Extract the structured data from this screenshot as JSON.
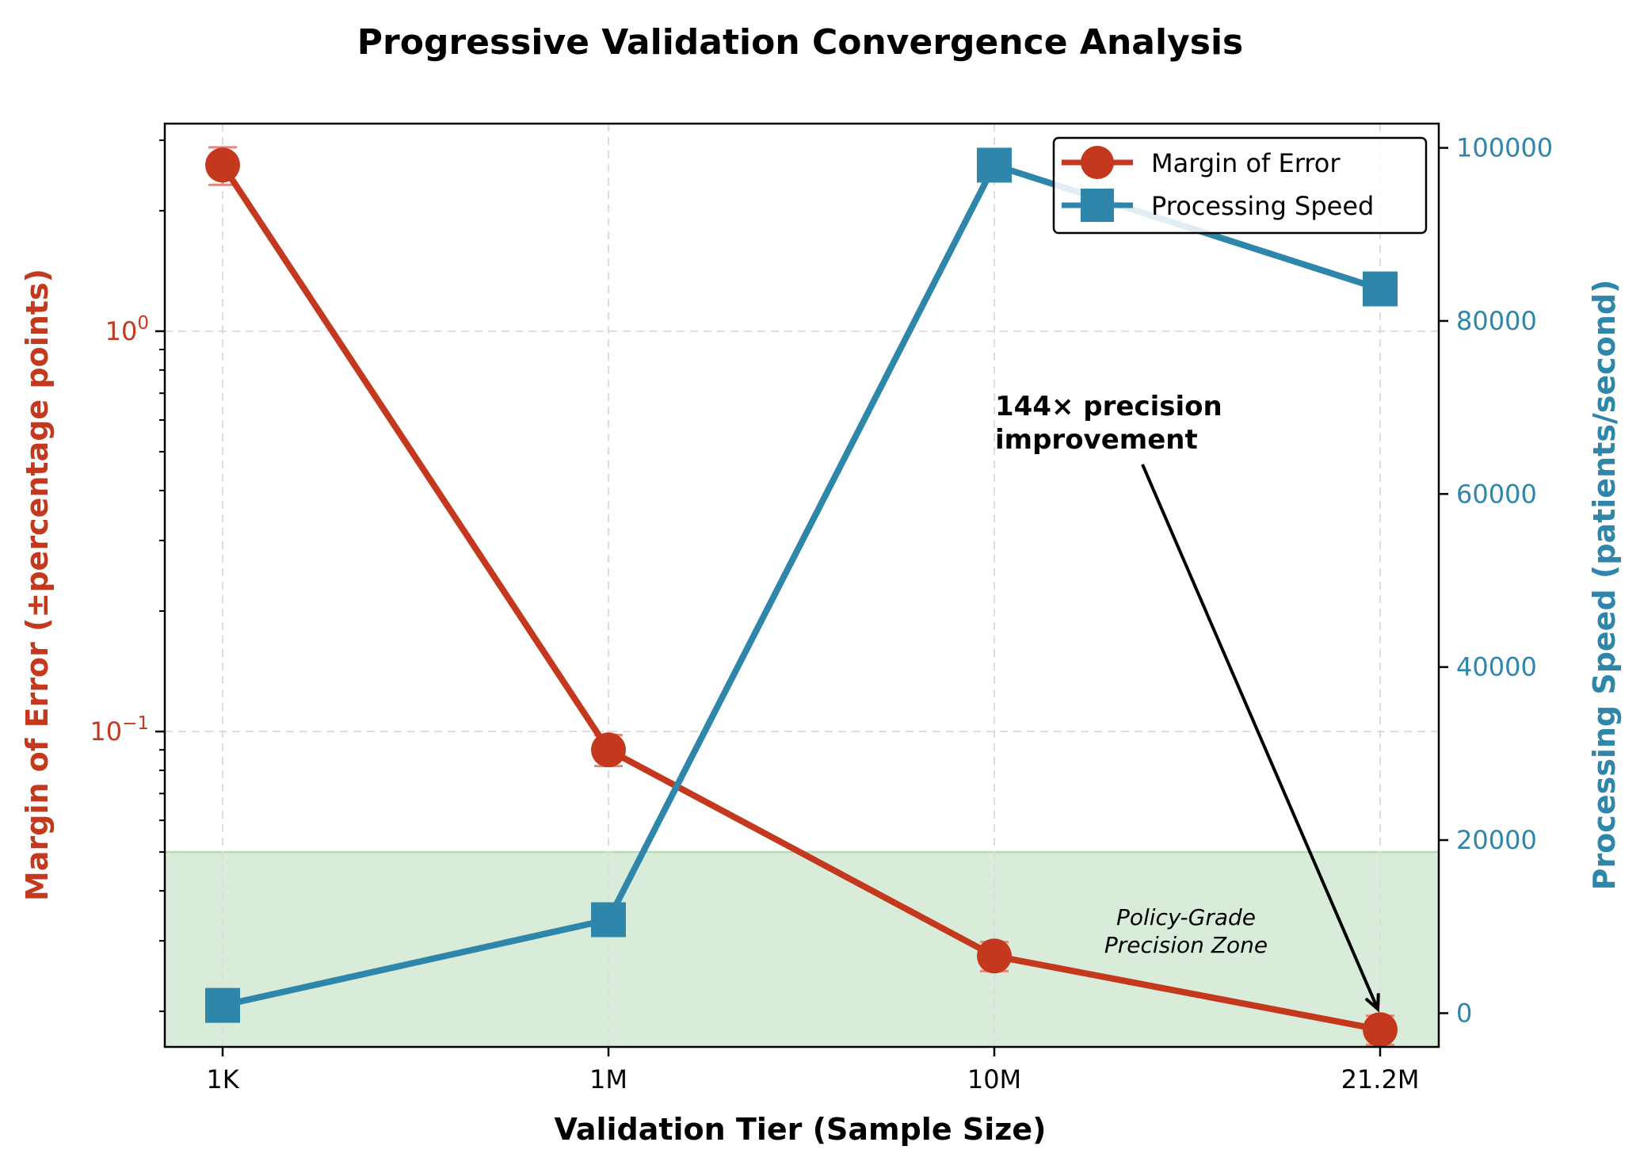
{
  "chart_data": {
    "type": "line",
    "title": "Progressive Validation Convergence Analysis",
    "xlabel": "Validation Tier (Sample Size)",
    "categories": [
      "1K",
      "1M",
      "10M",
      "21.2M"
    ],
    "left_axis": {
      "label": "Margin of Error (±percentage points)",
      "scale": "log",
      "range": [
        0.0163,
        3.3
      ],
      "ticks": [
        {
          "value": 1.0,
          "label": "10^0"
        },
        {
          "value": 0.1,
          "label": "10^-1"
        }
      ],
      "minor_ticks": [
        0.02,
        0.03,
        0.04,
        0.05,
        0.06,
        0.07,
        0.08,
        0.09,
        0.2,
        0.3,
        0.4,
        0.5,
        0.6,
        0.7,
        0.8,
        0.9,
        2,
        3
      ],
      "color": "#c4391e"
    },
    "right_axis": {
      "label": "Processing Speed (patients/second)",
      "scale": "linear",
      "range": [
        -3900,
        102800
      ],
      "ticks": [
        0,
        20000,
        40000,
        60000,
        80000,
        100000
      ],
      "color": "#2e86ab"
    },
    "series": [
      {
        "name": "Margin of Error",
        "axis": "left",
        "marker": "circle",
        "color": "#c4391e",
        "values": [
          2.6,
          0.09,
          0.0275,
          0.018
        ],
        "errors": [
          0.28,
          0.008,
          0.0023,
          0.0015
        ]
      },
      {
        "name": "Processing Speed",
        "axis": "right",
        "marker": "square",
        "color": "#2e86ab",
        "values": [
          900,
          10800,
          98000,
          83700
        ]
      }
    ],
    "shaded_zone": {
      "label": "Policy-Grade\nPrecision Zone",
      "from": 0,
      "to": 0.05,
      "axis": "left",
      "color": "#d9ecd9"
    },
    "annotation": {
      "text": "144× precision\nimprovement",
      "points_to": "21.2M"
    },
    "legend_position": "top-right",
    "grid": true
  }
}
